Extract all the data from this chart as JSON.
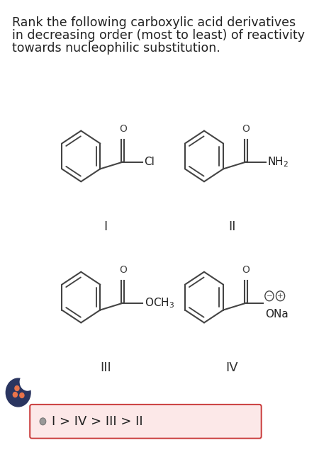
{
  "background_color": "#ffffff",
  "title_lines": [
    "Rank the following carboxylic acid derivatives",
    "in decreasing order (most to least) of reactivity",
    "towards nucleophilic substitution."
  ],
  "title_fontsize": 12.5,
  "structure_color": "#444444",
  "roman_labels": [
    "I",
    "II",
    "III",
    "IV"
  ],
  "answer_text": "I > IV > III > II",
  "answer_fontsize": 13,
  "answer_box_edge": "#cc4444",
  "answer_box_face": "#fce8e8",
  "chegg_body_color": "#2a3560",
  "chegg_dot_colors": [
    "#e8734a",
    "#e8734a",
    "#e8734a"
  ],
  "lw": 1.5
}
